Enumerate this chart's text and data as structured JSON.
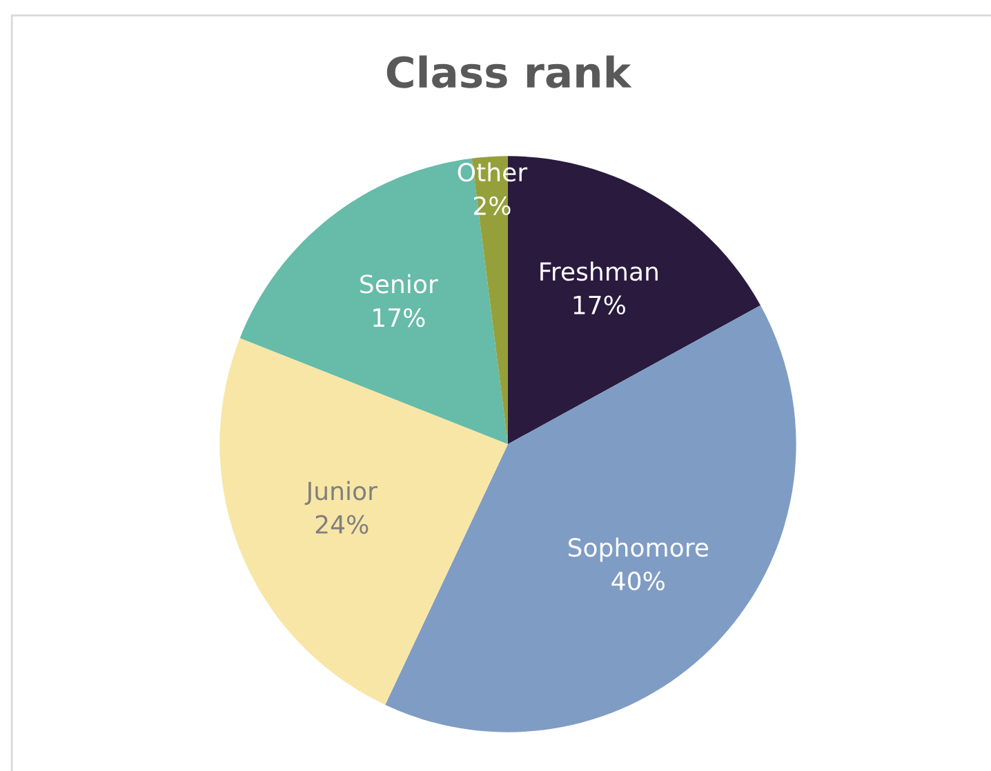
{
  "chart_data": {
    "type": "pie",
    "title": "Class rank",
    "categories": [
      "Freshman",
      "Sophomore",
      "Junior",
      "Senior",
      "Other"
    ],
    "values": [
      17,
      40,
      24,
      17,
      2
    ],
    "colors": [
      "#2a1a3e",
      "#7f9cc4",
      "#f8e6a6",
      "#66bba9",
      "#96a03a"
    ],
    "value_labels": [
      "17%",
      "40%",
      "24%",
      "17%",
      "2%"
    ],
    "legend": false
  }
}
